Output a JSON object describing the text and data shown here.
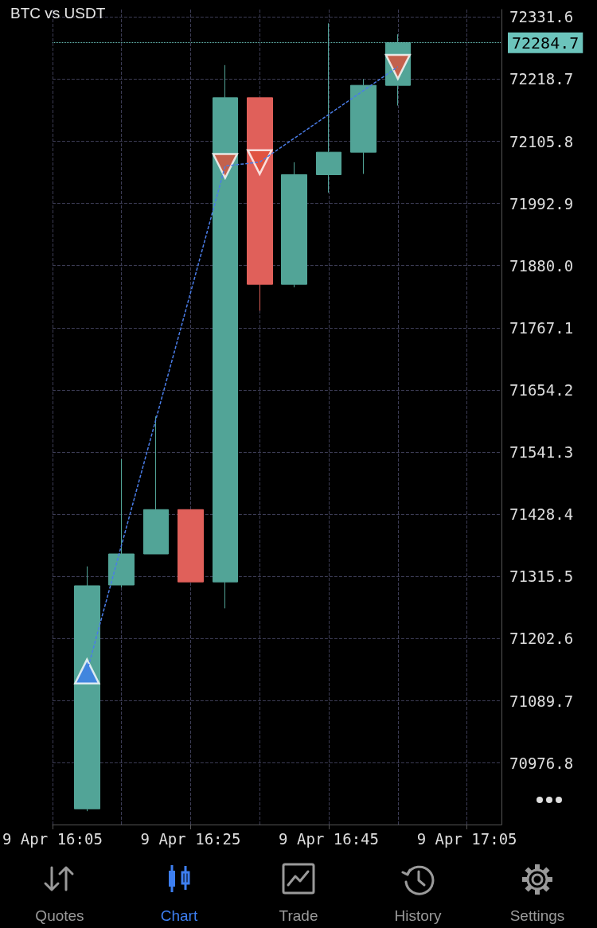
{
  "chart_data": {
    "type": "candlestick",
    "title": "BTC vs USDT",
    "categories": [
      "9 Apr 16:05",
      null,
      null,
      null,
      "9 Apr 16:25",
      null,
      null,
      null,
      "9 Apr 16:45",
      null,
      null,
      null,
      "9 Apr 17:05",
      null
    ],
    "ylim": [
      70865,
      72345
    ],
    "yticks": [
      70976.8,
      71089.7,
      71202.6,
      71315.5,
      71428.4,
      71541.3,
      71654.2,
      71767.1,
      {
        "value": 71880,
        "label": "71880.0"
      },
      71992.9,
      72105.8,
      72218.7,
      72331.6
    ],
    "grid": true,
    "series": [
      {
        "ohlc": [
          null,
          [
            70893.5,
            71333.8,
            70889.3,
            71298.6
          ],
          [
            71300.0,
            71528.6,
            71295.7,
            71356.4
          ],
          [
            71356.4,
            71606.2,
            71356.4,
            71436.9
          ],
          [
            71436.9,
            71436.9,
            71305.6,
            71305.6
          ],
          [
            71305.6,
            72244.1,
            71257.6,
            72184.8
          ],
          [
            72184.8,
            72184.8,
            71798.1,
            71846.1
          ],
          [
            71846.1,
            72067.7,
            71840.5,
            72045.1
          ],
          [
            72045.1,
            72320.0,
            72012.6,
            72086.0
          ],
          [
            72086.0,
            72218.7,
            72046.5,
            72207.4
          ],
          [
            72207.4,
            72300.0,
            72170.7,
            72284.7
          ],
          null,
          null,
          null
        ],
        "colors": [
          null,
          "#52a497",
          "#52a497",
          "#52a497",
          "#e0605a",
          "#52a497",
          "#e0605a",
          "#52a497",
          "#52a497",
          "#52a497",
          "#52a497",
          null,
          null,
          null
        ]
      },
      {
        "type": "line",
        "values": [
          null,
          71143,
          null,
          null,
          null,
          72061,
          72068,
          null,
          null,
          null,
          72241,
          null,
          null,
          null
        ],
        "color": "#4a7de8",
        "marker": "none",
        "line_style": "dashed"
      },
      {
        "type": "scatter",
        "values": [
          null,
          71143,
          null,
          null,
          null,
          null,
          null,
          null,
          null,
          null,
          null,
          null,
          null,
          null
        ],
        "color": "#3d7ef0",
        "marker": "triangle"
      },
      {
        "type": "scatter",
        "values": [
          null,
          null,
          null,
          null,
          null,
          72061,
          72068,
          null,
          null,
          null,
          72241,
          null,
          null,
          null
        ],
        "color": "#e0503a",
        "marker": "triangle"
      }
    ],
    "ref_lines": [
      {
        "axis": "y",
        "value": 72284.7,
        "label": "72284.7",
        "color": "#6cc4bc",
        "line_style": "dotted"
      }
    ],
    "annotations": [
      "Quotes",
      "Chart",
      "Trade",
      "History",
      "Settings"
    ]
  }
}
